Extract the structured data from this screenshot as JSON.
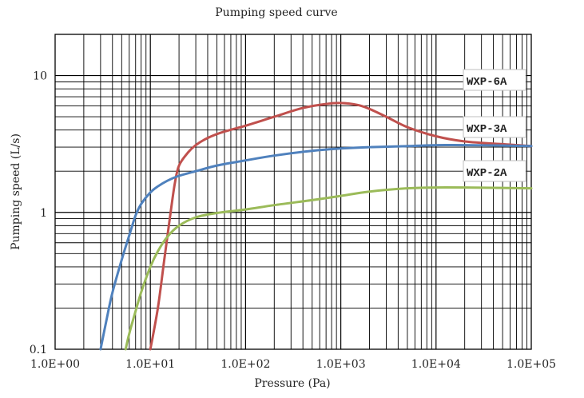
{
  "chart_data": {
    "type": "line",
    "title": "Pumping speed curve",
    "xlabel": "Pressure (Pa)",
    "ylabel": "Pumping speed (L/s)",
    "xscale": "log",
    "yscale": "log",
    "xlim": [
      1,
      100000
    ],
    "ylim": [
      0.1,
      20
    ],
    "grid": true,
    "legend": "labels at right end of curves",
    "x_tick_labels": [
      "1.0E+00",
      "1.0E+01",
      "1.0E+02",
      "1.0E+03",
      "1.0E+04",
      "1.0E+05"
    ],
    "x_tick_values": [
      1,
      10,
      100,
      1000,
      10000,
      100000
    ],
    "y_tick_labels": [
      "0.1",
      "1",
      "10"
    ],
    "y_tick_values": [
      0.1,
      1,
      10
    ],
    "series": [
      {
        "name": "WXP-6A",
        "color": "#c0504d",
        "x": [
          10,
          12,
          14,
          16,
          18,
          20,
          25,
          30,
          40,
          60,
          100,
          200,
          400,
          700,
          1000,
          1500,
          2000,
          3000,
          5000,
          10000,
          20000,
          50000,
          100000
        ],
        "y": [
          0.1,
          0.2,
          0.45,
          0.9,
          1.6,
          2.2,
          2.75,
          3.1,
          3.5,
          3.9,
          4.3,
          5.0,
          5.8,
          6.2,
          6.3,
          6.1,
          5.7,
          5.0,
          4.2,
          3.6,
          3.3,
          3.15,
          3.05
        ]
      },
      {
        "name": "WXP-3A",
        "color": "#4f81bd",
        "x": [
          3,
          3.5,
          4,
          5,
          6,
          7,
          8,
          10,
          12,
          15,
          20,
          30,
          50,
          100,
          200,
          500,
          1000,
          2000,
          5000,
          10000,
          20000,
          50000,
          100000
        ],
        "y": [
          0.1,
          0.17,
          0.26,
          0.45,
          0.68,
          0.95,
          1.15,
          1.4,
          1.55,
          1.7,
          1.85,
          2.0,
          2.2,
          2.4,
          2.6,
          2.82,
          2.93,
          3.0,
          3.05,
          3.1,
          3.1,
          3.08,
          3.05
        ]
      },
      {
        "name": "WXP-2A",
        "color": "#9bbb59",
        "x": [
          5.5,
          6,
          7,
          8,
          10,
          12,
          15,
          20,
          30,
          50,
          100,
          200,
          500,
          1000,
          2000,
          5000,
          10000,
          20000,
          50000,
          100000
        ],
        "y": [
          0.1,
          0.13,
          0.19,
          0.26,
          0.4,
          0.52,
          0.66,
          0.8,
          0.92,
          0.99,
          1.05,
          1.13,
          1.23,
          1.32,
          1.42,
          1.5,
          1.52,
          1.52,
          1.51,
          1.5
        ]
      }
    ]
  }
}
